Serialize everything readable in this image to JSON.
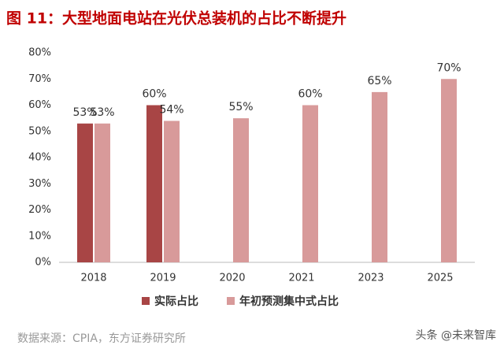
{
  "chart_data": {
    "type": "bar",
    "title": "图 11：大型地面电站在光伏总装机的占比不断提升",
    "source": "数据来源：CPIA，东方证券研究所",
    "watermark": "头条 @未来智库",
    "categories": [
      "2018",
      "2019",
      "2020",
      "2021",
      "2023",
      "2025"
    ],
    "series": [
      {
        "name": "实际占比",
        "color": "#a84545",
        "values": [
          53,
          60,
          null,
          null,
          null,
          null
        ],
        "value_labels": [
          "53%",
          "60%",
          null,
          null,
          null,
          null
        ]
      },
      {
        "name": "年初预测集中式占比",
        "color": "#d89a9a",
        "values": [
          53,
          54,
          55,
          60,
          65,
          70
        ],
        "value_labels": [
          "53%",
          "54%",
          "55%",
          "60%",
          "65%",
          "70%"
        ]
      }
    ],
    "ylim": [
      0,
      80
    ],
    "yticks": [
      {
        "value": 0,
        "label": "0%"
      },
      {
        "value": 10,
        "label": "10%"
      },
      {
        "value": 20,
        "label": "20%"
      },
      {
        "value": 30,
        "label": "30%"
      },
      {
        "value": 40,
        "label": "40%"
      },
      {
        "value": 50,
        "label": "50%"
      },
      {
        "value": 60,
        "label": "60%"
      },
      {
        "value": 70,
        "label": "70%"
      },
      {
        "value": 80,
        "label": "80%"
      }
    ],
    "legend": "bottom"
  }
}
